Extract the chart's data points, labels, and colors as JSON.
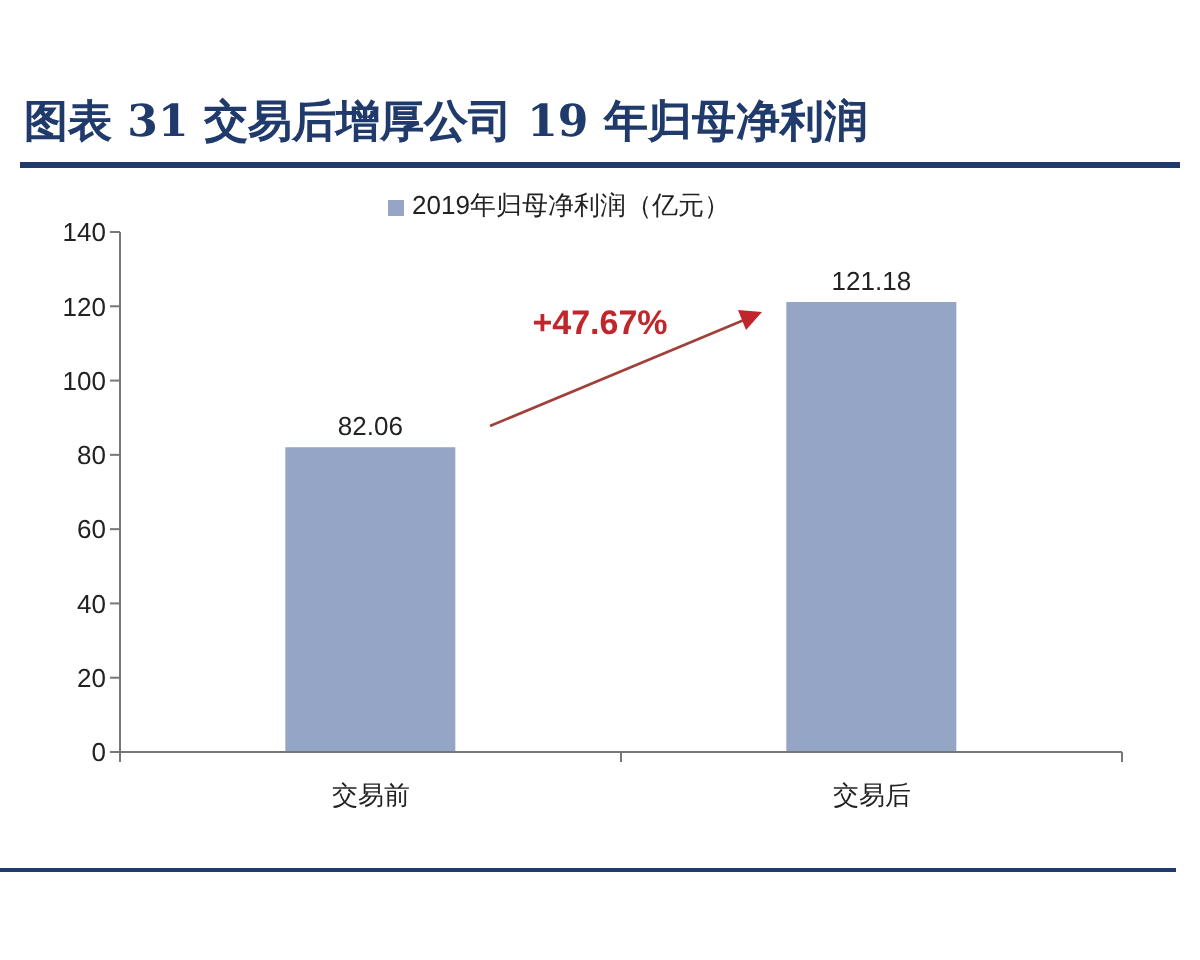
{
  "chart_data": {
    "type": "bar",
    "title": "图表 31 交易后增厚公司 19 年归母净利润",
    "categories": [
      "交易前",
      "交易后"
    ],
    "series": [
      {
        "name": "2019年归母净利润（亿元）",
        "color": "#94a5c5",
        "values": [
          82.06,
          121.18
        ]
      }
    ],
    "ylim": [
      0,
      140
    ],
    "yticks": [
      0,
      20,
      40,
      60,
      80,
      100,
      120,
      140
    ],
    "grid": false,
    "legend": "top",
    "data_labels": true,
    "annotations": [
      "+47.67%"
    ]
  }
}
